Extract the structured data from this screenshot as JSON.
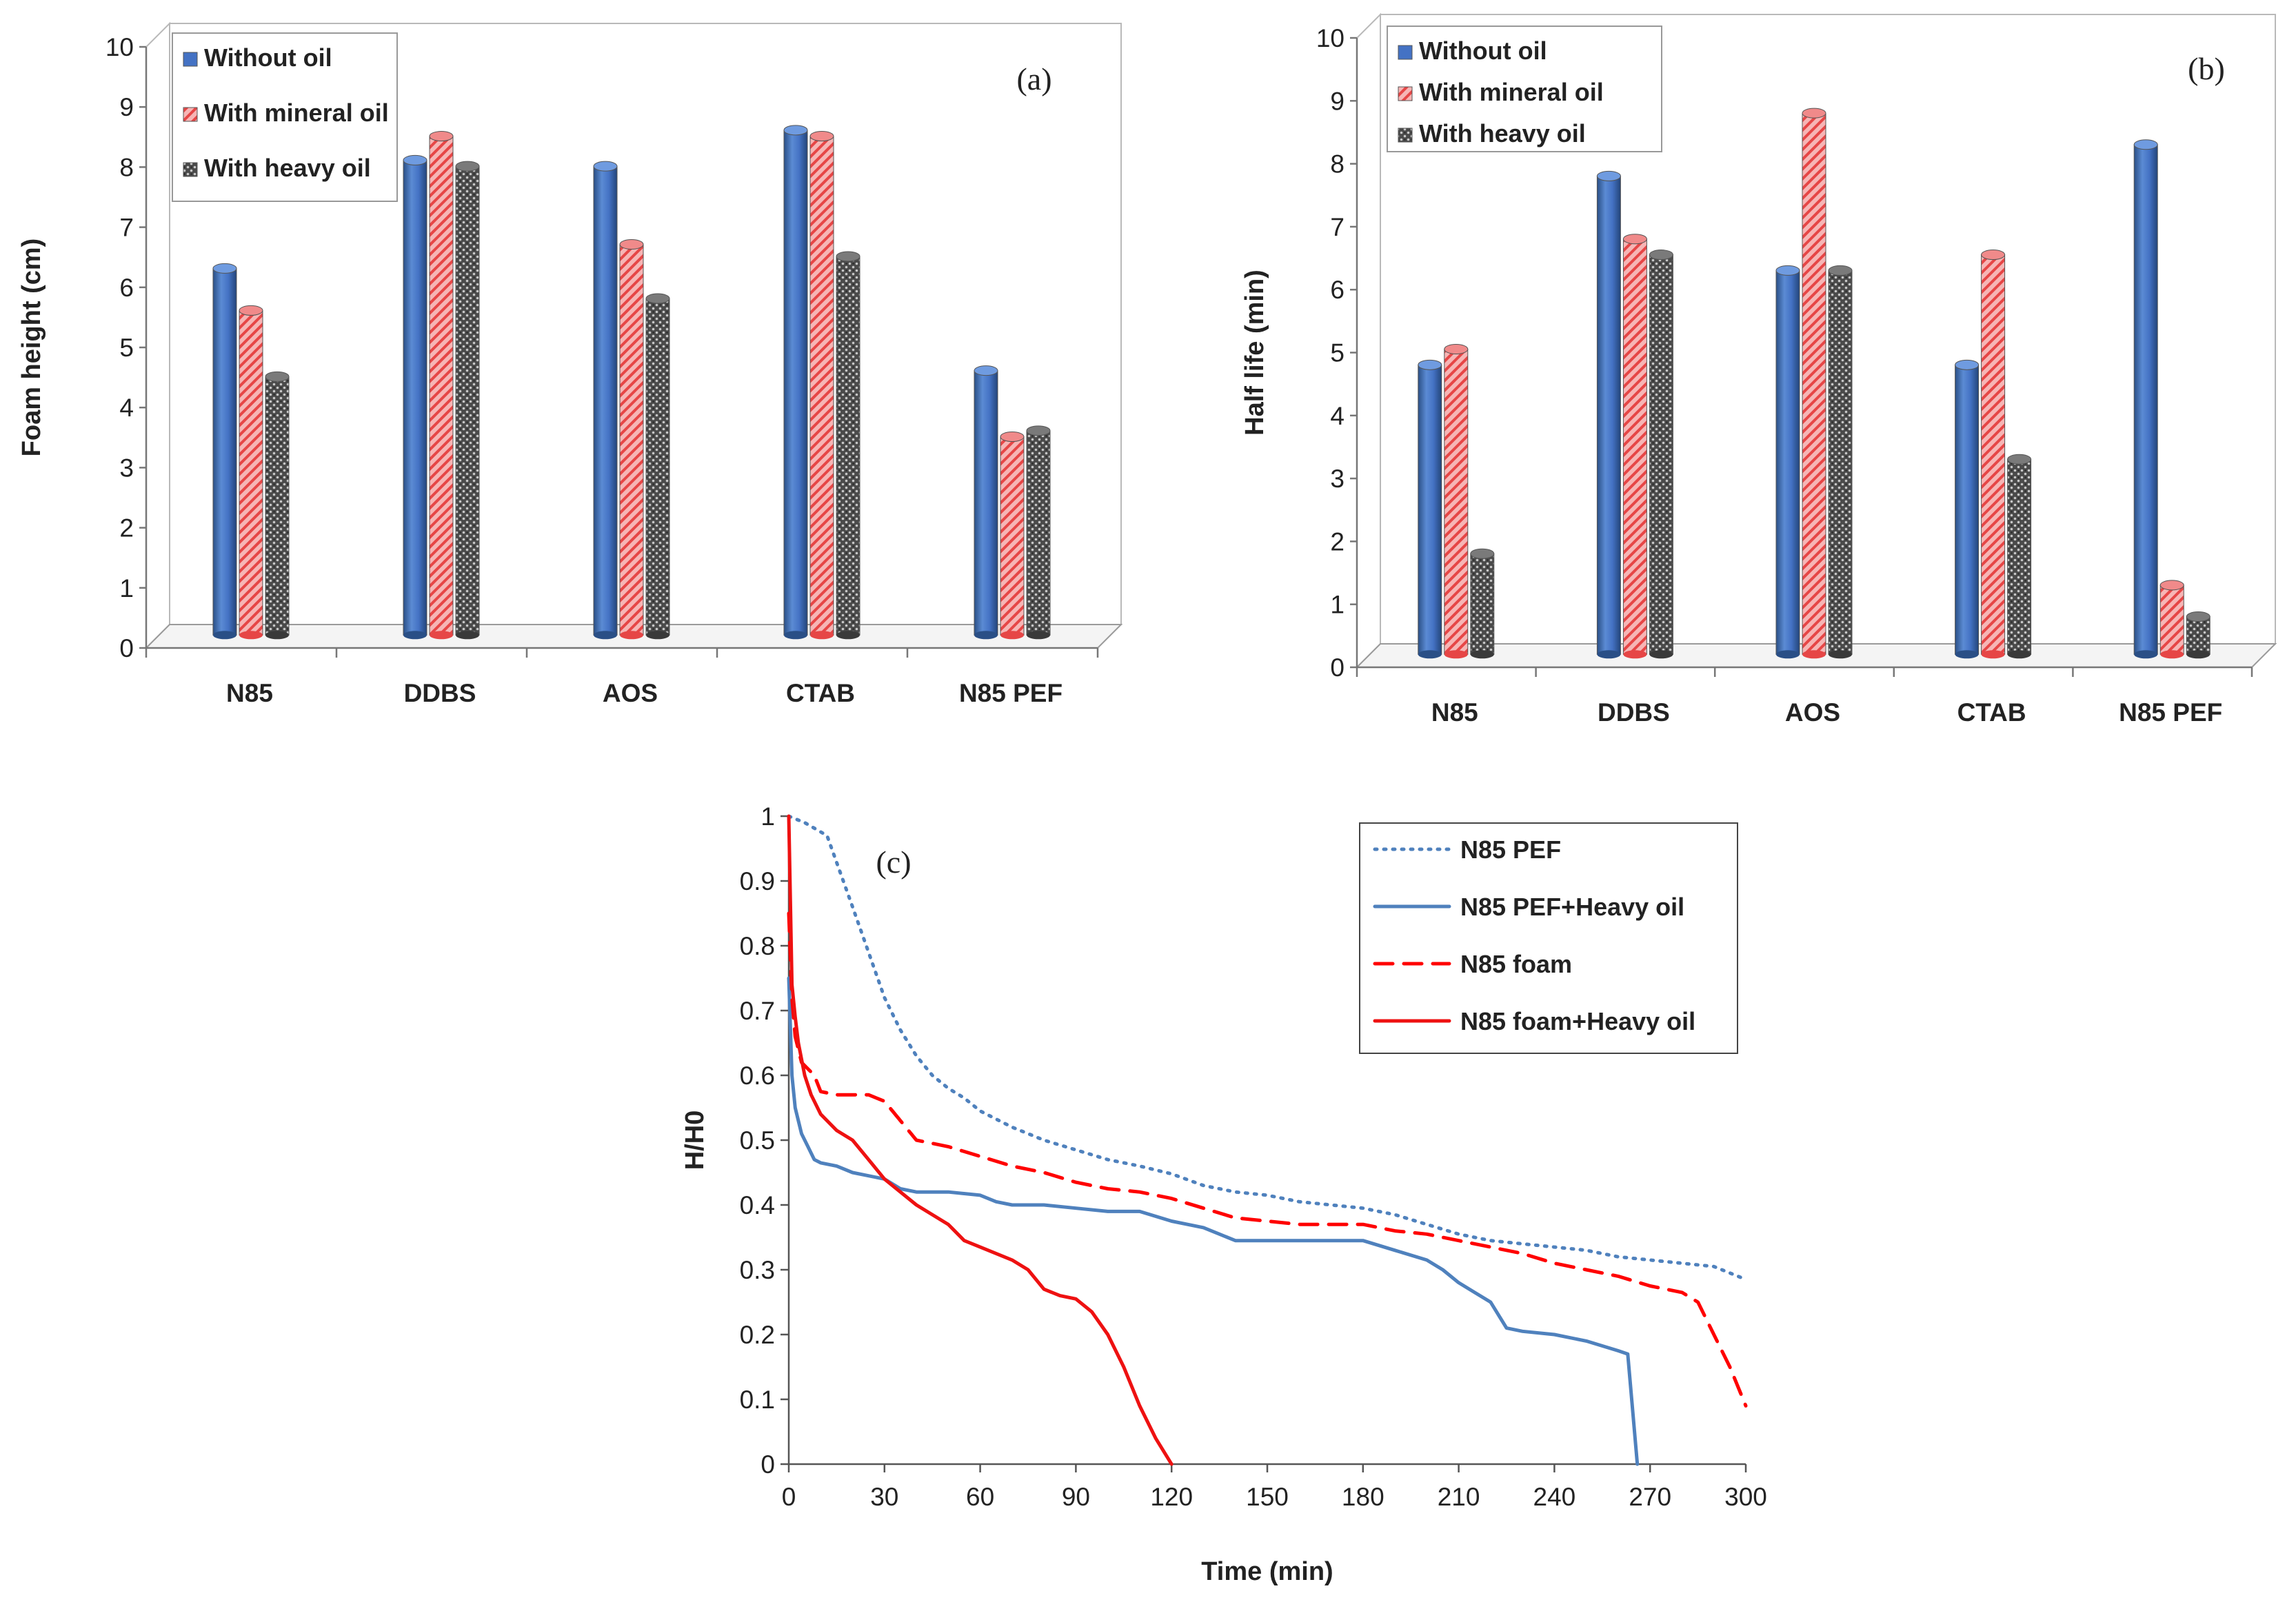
{
  "chart_data": [
    {
      "id": "a",
      "type": "bar",
      "panel_label": "(a)",
      "title": "",
      "xlabel": "",
      "ylabel": "Foam height (cm)",
      "ylim": [
        0,
        10
      ],
      "yticks": [
        "0",
        "1",
        "2",
        "3",
        "4",
        "5",
        "6",
        "7",
        "8",
        "9",
        "10"
      ],
      "categories": [
        "N85",
        "DDBS",
        "AOS",
        "CTAB",
        "N85 PEF"
      ],
      "series": [
        {
          "name": "Without oil",
          "values": [
            6.1,
            7.9,
            7.8,
            8.4,
            4.4
          ]
        },
        {
          "name": "With mineral oil",
          "values": [
            5.4,
            8.3,
            6.5,
            8.3,
            3.3
          ]
        },
        {
          "name": "With heavy oil",
          "values": [
            4.3,
            7.8,
            5.6,
            6.3,
            3.4
          ]
        }
      ],
      "legend_position": "top-left",
      "grid": false
    },
    {
      "id": "b",
      "type": "bar",
      "panel_label": "(b)",
      "title": "",
      "xlabel": "",
      "ylabel": "Half life (min)",
      "ylim": [
        0,
        10
      ],
      "yticks": [
        "0",
        "1",
        "2",
        "3",
        "4",
        "5",
        "6",
        "7",
        "8",
        "9",
        "10"
      ],
      "categories": [
        "N85",
        "DDBS",
        "AOS",
        "CTAB",
        "N85 PEF"
      ],
      "series": [
        {
          "name": "Without oil",
          "values": [
            4.6,
            7.6,
            6.1,
            4.6,
            8.1
          ]
        },
        {
          "name": "With mineral oil",
          "values": [
            4.85,
            6.6,
            8.6,
            6.35,
            1.1
          ]
        },
        {
          "name": "With heavy oil",
          "values": [
            1.6,
            6.35,
            6.1,
            3.1,
            0.6
          ]
        }
      ],
      "legend_position": "top-left",
      "grid": false
    },
    {
      "id": "c",
      "type": "line",
      "panel_label": "(c)",
      "title": "",
      "xlabel": "Time (min)",
      "ylabel": "H/H0",
      "xlim": [
        0,
        300
      ],
      "ylim": [
        0,
        1
      ],
      "xticks": [
        "0",
        "30",
        "60",
        "90",
        "120",
        "150",
        "180",
        "210",
        "240",
        "270",
        "300"
      ],
      "yticks": [
        "0",
        "0.1",
        "0.2",
        "0.3",
        "0.4",
        "0.5",
        "0.6",
        "0.7",
        "0.8",
        "0.9",
        "1"
      ],
      "legend_position": "top-right",
      "grid": false,
      "series": [
        {
          "name": "N85 PEF",
          "style": "dotted",
          "color": "#4f81bd",
          "x": [
            0,
            5,
            12,
            20,
            25,
            30,
            35,
            40,
            45,
            50,
            55,
            60,
            70,
            80,
            90,
            100,
            110,
            120,
            130,
            140,
            150,
            160,
            170,
            180,
            190,
            200,
            210,
            220,
            230,
            240,
            250,
            260,
            270,
            280,
            290,
            300
          ],
          "y": [
            1.0,
            0.99,
            0.97,
            0.86,
            0.79,
            0.72,
            0.67,
            0.63,
            0.6,
            0.58,
            0.565,
            0.545,
            0.52,
            0.5,
            0.485,
            0.47,
            0.46,
            0.448,
            0.43,
            0.42,
            0.415,
            0.405,
            0.4,
            0.395,
            0.385,
            0.37,
            0.355,
            0.345,
            0.34,
            0.335,
            0.33,
            0.32,
            0.315,
            0.31,
            0.305,
            0.285
          ]
        },
        {
          "name": "N85 PEF+Heavy oil",
          "style": "solid",
          "color": "#4f81bd",
          "x": [
            0,
            1,
            2,
            4,
            6,
            8,
            10,
            15,
            20,
            30,
            35,
            40,
            50,
            60,
            65,
            70,
            80,
            90,
            100,
            110,
            120,
            130,
            135,
            140,
            150,
            160,
            170,
            180,
            190,
            200,
            205,
            210,
            215,
            220,
            225,
            230,
            240,
            250,
            260,
            263,
            266
          ],
          "y": [
            0.75,
            0.6,
            0.55,
            0.51,
            0.49,
            0.47,
            0.465,
            0.46,
            0.45,
            0.44,
            0.425,
            0.42,
            0.42,
            0.415,
            0.405,
            0.4,
            0.4,
            0.395,
            0.39,
            0.39,
            0.375,
            0.365,
            0.355,
            0.345,
            0.345,
            0.345,
            0.345,
            0.345,
            0.33,
            0.315,
            0.3,
            0.28,
            0.265,
            0.25,
            0.21,
            0.205,
            0.2,
            0.19,
            0.175,
            0.17,
            0.0
          ]
        },
        {
          "name": "N85 foam",
          "style": "dashed",
          "color": "#ff0000",
          "x": [
            0,
            1,
            2,
            4,
            6,
            8,
            10,
            15,
            20,
            25,
            30,
            40,
            50,
            60,
            70,
            80,
            90,
            100,
            110,
            120,
            130,
            140,
            150,
            160,
            170,
            180,
            190,
            200,
            210,
            220,
            230,
            240,
            250,
            260,
            270,
            280,
            285,
            290,
            295,
            300
          ],
          "y": [
            0.85,
            0.72,
            0.66,
            0.62,
            0.61,
            0.6,
            0.575,
            0.57,
            0.57,
            0.57,
            0.56,
            0.5,
            0.49,
            0.475,
            0.46,
            0.45,
            0.435,
            0.425,
            0.42,
            0.41,
            0.395,
            0.38,
            0.375,
            0.37,
            0.37,
            0.37,
            0.36,
            0.355,
            0.345,
            0.335,
            0.325,
            0.31,
            0.3,
            0.29,
            0.275,
            0.265,
            0.25,
            0.2,
            0.15,
            0.09
          ]
        },
        {
          "name": "N85 foam+Heavy oil",
          "style": "solid",
          "color": "#ee1111",
          "x": [
            0,
            1,
            2,
            3,
            5,
            7,
            10,
            15,
            20,
            25,
            30,
            40,
            50,
            55,
            60,
            70,
            75,
            80,
            85,
            90,
            95,
            100,
            105,
            110,
            115,
            120
          ],
          "y": [
            1.0,
            0.74,
            0.69,
            0.65,
            0.6,
            0.57,
            0.54,
            0.515,
            0.5,
            0.47,
            0.44,
            0.4,
            0.37,
            0.345,
            0.335,
            0.315,
            0.3,
            0.27,
            0.26,
            0.255,
            0.235,
            0.2,
            0.15,
            0.09,
            0.04,
            0.0
          ]
        }
      ]
    }
  ]
}
